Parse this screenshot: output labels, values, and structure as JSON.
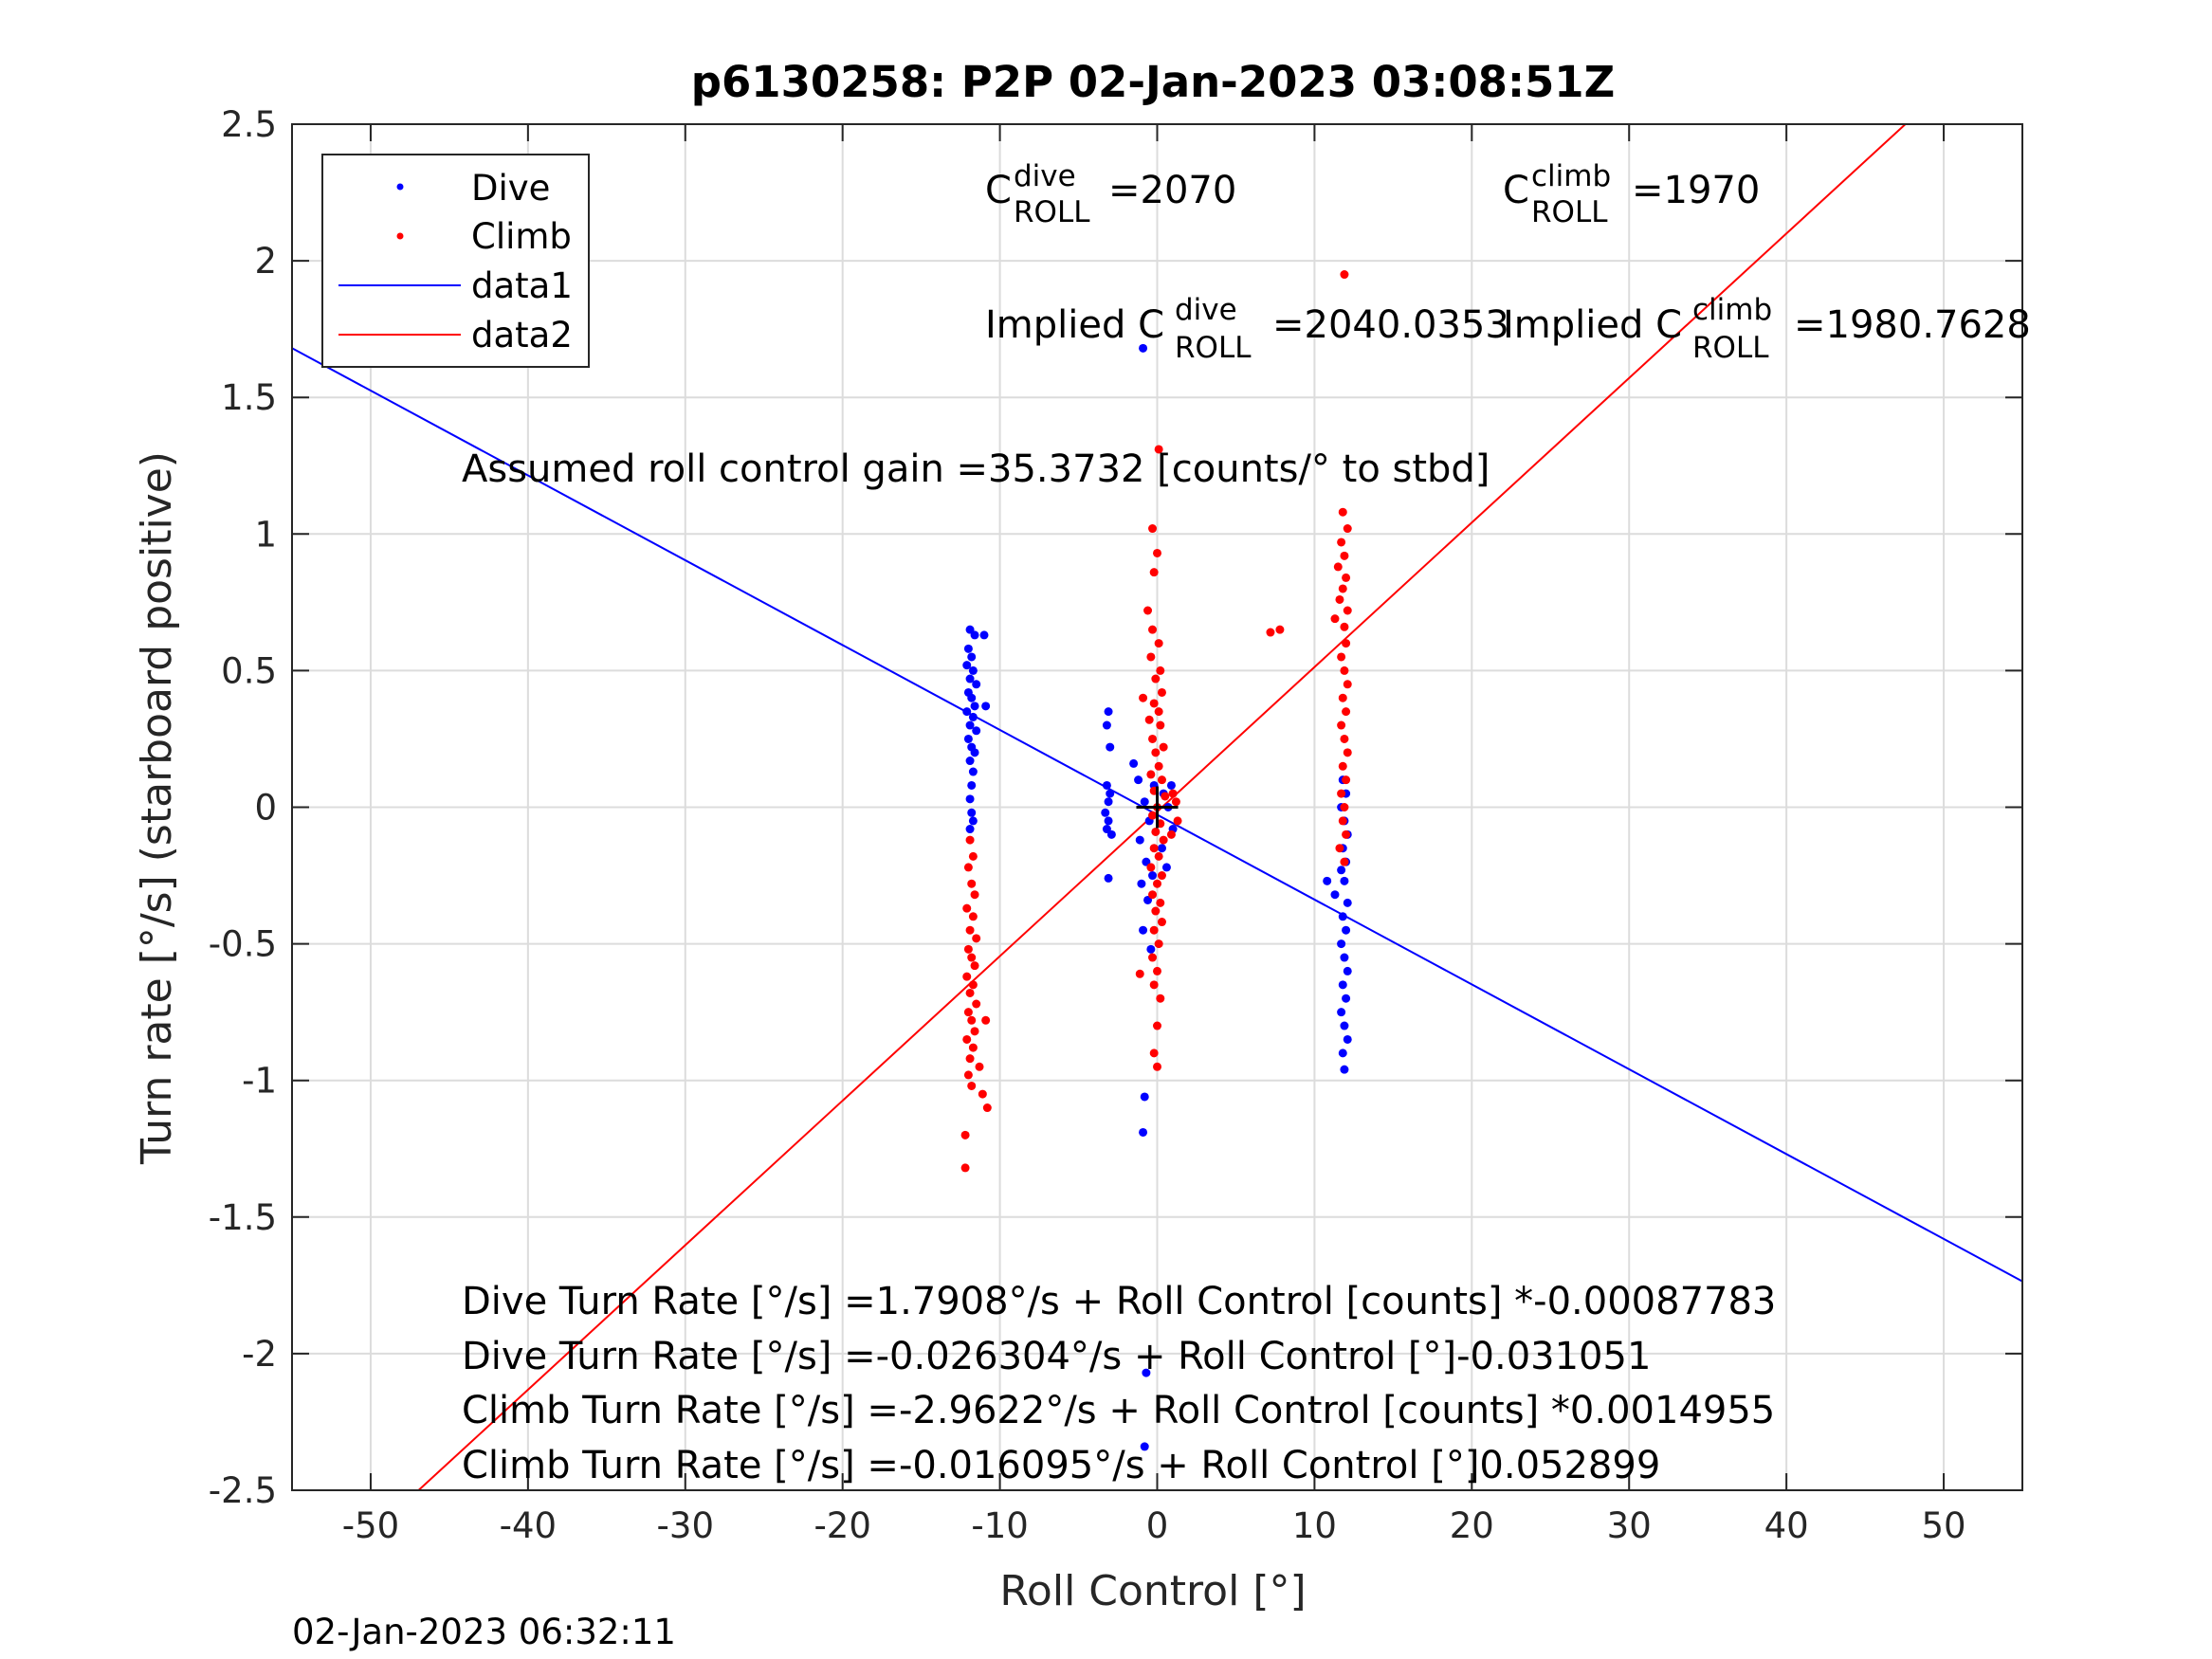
{
  "chart_data": {
    "type": "scatter",
    "title": "p6130258: P2P 02-Jan-2023 03:08:51Z",
    "xlabel": "Roll Control [°]",
    "ylabel": "Turn rate [°/s] (starboard positive)",
    "xlim": [
      -55,
      55
    ],
    "ylim": [
      -2.5,
      2.5
    ],
    "xticks": [
      -50,
      -40,
      -30,
      -20,
      -10,
      0,
      10,
      20,
      30,
      40,
      50
    ],
    "yticks": [
      -2.5,
      -2,
      -1.5,
      -1,
      -0.5,
      0,
      0.5,
      1,
      1.5,
      2,
      2.5
    ],
    "xtick_labels": [
      "-50",
      "-40",
      "-30",
      "-20",
      "-10",
      "0",
      "10",
      "20",
      "30",
      "40",
      "50"
    ],
    "ytick_labels": [
      "-2.5",
      "-2",
      "-1.5",
      "-1",
      "-0.5",
      "0",
      "0.5",
      "1",
      "1.5",
      "2",
      "2.5"
    ],
    "grid": true,
    "legend_position": "top-left",
    "timestamp": "02-Jan-2023 06:32:11",
    "series": [
      {
        "name": "Dive",
        "kind": "points",
        "color": "#0000ff",
        "points": [
          [
            -11.9,
            0.65
          ],
          [
            -11.6,
            0.63
          ],
          [
            -11.0,
            0.63
          ],
          [
            -12.0,
            0.58
          ],
          [
            -11.8,
            0.55
          ],
          [
            -12.1,
            0.52
          ],
          [
            -11.7,
            0.5
          ],
          [
            -11.9,
            0.47
          ],
          [
            -11.5,
            0.45
          ],
          [
            -12.0,
            0.42
          ],
          [
            -11.8,
            0.4
          ],
          [
            -11.6,
            0.37
          ],
          [
            -10.9,
            0.37
          ],
          [
            -12.1,
            0.35
          ],
          [
            -11.7,
            0.33
          ],
          [
            -11.9,
            0.3
          ],
          [
            -11.5,
            0.28
          ],
          [
            -12.0,
            0.25
          ],
          [
            -11.8,
            0.22
          ],
          [
            -11.6,
            0.2
          ],
          [
            -11.9,
            0.17
          ],
          [
            -11.7,
            0.13
          ],
          [
            -11.8,
            0.08
          ],
          [
            -11.9,
            0.03
          ],
          [
            -11.8,
            -0.02
          ],
          [
            -11.7,
            -0.05
          ],
          [
            -11.9,
            -0.08
          ],
          [
            -3.1,
            0.35
          ],
          [
            -3.2,
            0.3
          ],
          [
            -3.0,
            0.22
          ],
          [
            -3.2,
            0.08
          ],
          [
            -3.0,
            0.05
          ],
          [
            -3.1,
            0.02
          ],
          [
            -3.3,
            -0.02
          ],
          [
            -3.1,
            -0.05
          ],
          [
            -3.2,
            -0.08
          ],
          [
            -2.9,
            -0.1
          ],
          [
            -3.1,
            -0.26
          ],
          [
            -1.5,
            0.16
          ],
          [
            -1.2,
            0.1
          ],
          [
            -0.8,
            0.02
          ],
          [
            -0.5,
            -0.05
          ],
          [
            -1.1,
            -0.12
          ],
          [
            -0.7,
            -0.2
          ],
          [
            -0.3,
            -0.25
          ],
          [
            -1.0,
            -0.28
          ],
          [
            -0.6,
            -0.34
          ],
          [
            -0.9,
            -0.45
          ],
          [
            -0.4,
            -0.52
          ],
          [
            -0.2,
            0.08
          ],
          [
            0.4,
            0.05
          ],
          [
            0.7,
            0.0
          ],
          [
            1.0,
            -0.08
          ],
          [
            0.3,
            -0.15
          ],
          [
            0.6,
            -0.22
          ],
          [
            0.9,
            0.08
          ],
          [
            -0.8,
            -1.06
          ],
          [
            -0.9,
            -1.19
          ],
          [
            -0.7,
            -2.07
          ],
          [
            -0.8,
            -2.34
          ],
          [
            -0.9,
            1.68
          ],
          [
            11.8,
            0.1
          ],
          [
            12.0,
            0.05
          ],
          [
            11.7,
            0.0
          ],
          [
            11.9,
            -0.05
          ],
          [
            12.1,
            -0.1
          ],
          [
            11.8,
            -0.15
          ],
          [
            12.0,
            -0.2
          ],
          [
            11.7,
            -0.23
          ],
          [
            11.9,
            -0.27
          ],
          [
            10.8,
            -0.27
          ],
          [
            11.3,
            -0.32
          ],
          [
            12.1,
            -0.35
          ],
          [
            11.8,
            -0.4
          ],
          [
            12.0,
            -0.45
          ],
          [
            11.7,
            -0.5
          ],
          [
            11.9,
            -0.55
          ],
          [
            12.1,
            -0.6
          ],
          [
            11.8,
            -0.65
          ],
          [
            12.0,
            -0.7
          ],
          [
            11.7,
            -0.75
          ],
          [
            11.9,
            -0.8
          ],
          [
            12.1,
            -0.85
          ],
          [
            11.8,
            -0.9
          ],
          [
            11.9,
            -0.96
          ]
        ]
      },
      {
        "name": "Climb",
        "kind": "points",
        "color": "#ff0000",
        "points": [
          [
            -11.9,
            -0.12
          ],
          [
            -11.7,
            -0.18
          ],
          [
            -12.0,
            -0.22
          ],
          [
            -11.8,
            -0.28
          ],
          [
            -11.6,
            -0.32
          ],
          [
            -12.1,
            -0.37
          ],
          [
            -11.7,
            -0.4
          ],
          [
            -11.9,
            -0.45
          ],
          [
            -11.5,
            -0.48
          ],
          [
            -12.0,
            -0.52
          ],
          [
            -11.8,
            -0.55
          ],
          [
            -11.6,
            -0.58
          ],
          [
            -12.1,
            -0.62
          ],
          [
            -11.7,
            -0.65
          ],
          [
            -11.9,
            -0.68
          ],
          [
            -11.5,
            -0.72
          ],
          [
            -12.0,
            -0.75
          ],
          [
            -11.8,
            -0.78
          ],
          [
            -10.9,
            -0.78
          ],
          [
            -11.6,
            -0.82
          ],
          [
            -12.1,
            -0.85
          ],
          [
            -11.7,
            -0.88
          ],
          [
            -11.9,
            -0.92
          ],
          [
            -11.3,
            -0.95
          ],
          [
            -12.0,
            -0.98
          ],
          [
            -11.8,
            -1.02
          ],
          [
            -11.1,
            -1.05
          ],
          [
            -10.8,
            -1.1
          ],
          [
            -12.2,
            -1.2
          ],
          [
            -12.2,
            -1.32
          ],
          [
            -0.3,
            1.02
          ],
          [
            0.0,
            0.93
          ],
          [
            -0.2,
            0.86
          ],
          [
            -0.6,
            0.72
          ],
          [
            -0.3,
            0.65
          ],
          [
            0.1,
            0.6
          ],
          [
            -0.4,
            0.55
          ],
          [
            0.2,
            0.5
          ],
          [
            -0.1,
            0.47
          ],
          [
            -0.9,
            0.4
          ],
          [
            0.3,
            0.42
          ],
          [
            -0.2,
            0.38
          ],
          [
            0.1,
            0.35
          ],
          [
            -0.5,
            0.32
          ],
          [
            0.2,
            0.3
          ],
          [
            -0.3,
            0.25
          ],
          [
            0.4,
            0.22
          ],
          [
            -0.1,
            0.2
          ],
          [
            0.1,
            0.15
          ],
          [
            -0.4,
            0.12
          ],
          [
            0.3,
            0.1
          ],
          [
            -0.2,
            0.06
          ],
          [
            0.5,
            0.04
          ],
          [
            0.0,
            0.0
          ],
          [
            -0.3,
            -0.03
          ],
          [
            0.2,
            -0.06
          ],
          [
            -0.1,
            -0.09
          ],
          [
            0.4,
            -0.12
          ],
          [
            -0.2,
            -0.15
          ],
          [
            0.1,
            -0.18
          ],
          [
            -0.4,
            -0.22
          ],
          [
            0.3,
            -0.25
          ],
          [
            0.0,
            -0.28
          ],
          [
            -0.3,
            -0.32
          ],
          [
            0.2,
            -0.35
          ],
          [
            -0.1,
            -0.38
          ],
          [
            0.3,
            -0.42
          ],
          [
            -0.2,
            -0.45
          ],
          [
            0.1,
            -0.5
          ],
          [
            -0.3,
            -0.55
          ],
          [
            0.0,
            -0.6
          ],
          [
            -0.2,
            -0.65
          ],
          [
            0.2,
            -0.7
          ],
          [
            -1.1,
            -0.61
          ],
          [
            0.0,
            -0.8
          ],
          [
            -0.2,
            -0.9
          ],
          [
            0.0,
            -0.95
          ],
          [
            0.1,
            1.31
          ],
          [
            1.0,
            0.05
          ],
          [
            1.3,
            -0.05
          ],
          [
            0.9,
            -0.1
          ],
          [
            1.2,
            0.02
          ],
          [
            11.9,
            1.95
          ],
          [
            11.8,
            1.08
          ],
          [
            12.1,
            1.02
          ],
          [
            11.7,
            0.97
          ],
          [
            11.9,
            0.92
          ],
          [
            11.5,
            0.88
          ],
          [
            12.0,
            0.84
          ],
          [
            11.8,
            0.8
          ],
          [
            11.6,
            0.76
          ],
          [
            12.1,
            0.72
          ],
          [
            11.3,
            0.69
          ],
          [
            11.9,
            0.66
          ],
          [
            12.0,
            0.6
          ],
          [
            11.7,
            0.55
          ],
          [
            11.9,
            0.5
          ],
          [
            12.1,
            0.45
          ],
          [
            11.8,
            0.4
          ],
          [
            12.0,
            0.35
          ],
          [
            11.7,
            0.3
          ],
          [
            11.9,
            0.25
          ],
          [
            12.1,
            0.2
          ],
          [
            11.8,
            0.15
          ],
          [
            12.0,
            0.1
          ],
          [
            11.7,
            0.05
          ],
          [
            11.9,
            0.0
          ],
          [
            11.8,
            -0.05
          ],
          [
            12.0,
            -0.1
          ],
          [
            11.6,
            -0.15
          ],
          [
            11.9,
            -0.2
          ],
          [
            7.2,
            0.64
          ],
          [
            7.8,
            0.65
          ]
        ]
      },
      {
        "name": "data1",
        "kind": "line",
        "color": "#0000ff",
        "x": [
          -55,
          55
        ],
        "y": [
          1.6802,
          -1.7353
        ]
      },
      {
        "name": "data2",
        "kind": "line",
        "color": "#ff0000",
        "x": [
          -55,
          55
        ],
        "y": [
          -2.9255,
          2.8934
        ]
      }
    ],
    "marker": {
      "x": 0,
      "y": 0,
      "symbol": "+",
      "color": "#000000"
    },
    "annotations": {
      "c_dive": {
        "base": "C",
        "sup": "dive",
        "sub": "ROLL",
        "value": "=2070"
      },
      "c_climb": {
        "base": "C",
        "sup": "climb",
        "sub": "ROLL",
        "value": "=1970"
      },
      "implied_dive": {
        "prefix": "Implied C",
        "sup": "dive",
        "sub": "ROLL",
        "value": "=2040.0353"
      },
      "implied_climb": {
        "prefix": "Implied C",
        "sup": "climb",
        "sub": "ROLL",
        "value": "=1980.7628"
      },
      "gain": "Assumed roll control gain =35.3732 [counts/° to stbd]",
      "equations": [
        "Dive Turn Rate [°/s] =1.7908°/s + Roll Control [counts] *-0.00087783",
        "Dive Turn Rate [°/s] =-0.026304°/s + Roll Control [°]-0.031051",
        "Climb Turn Rate [°/s] =-2.9622°/s + Roll Control [counts] *0.0014955",
        "Climb Turn Rate [°/s] =-0.016095°/s + Roll Control [°]0.052899"
      ]
    }
  }
}
